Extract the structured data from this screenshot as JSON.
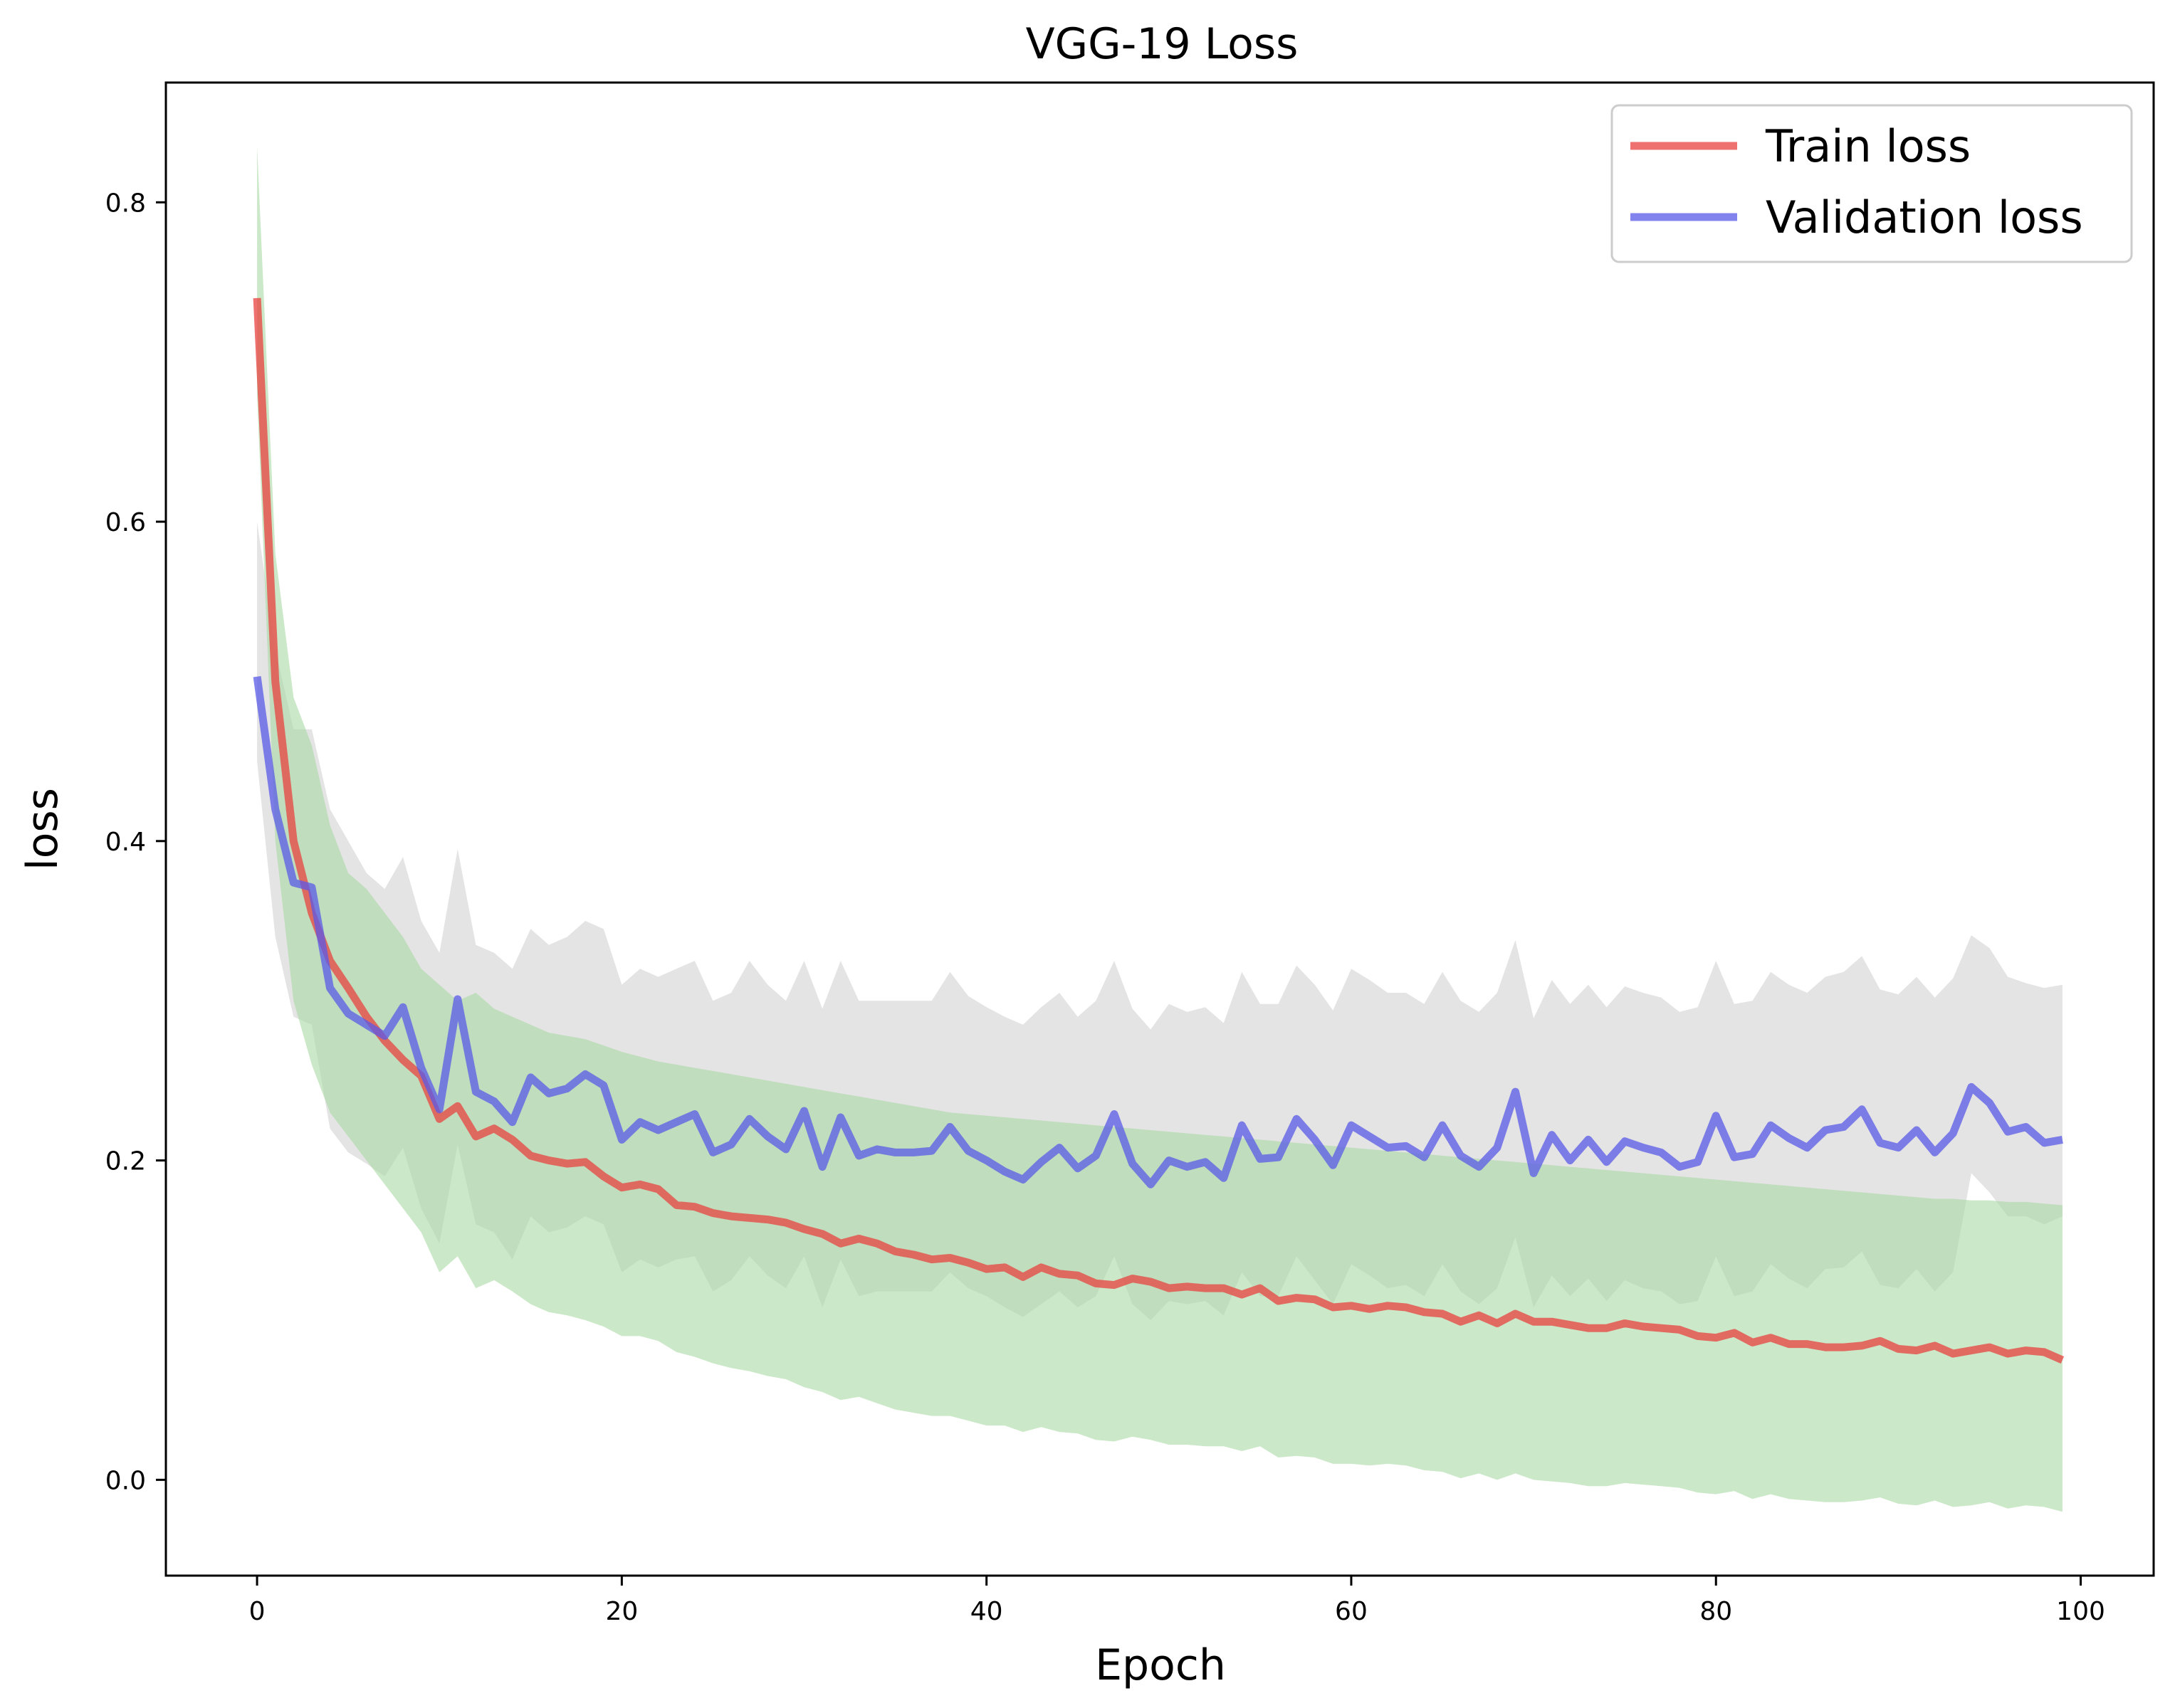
{
  "chart_data": {
    "type": "line",
    "title": "VGG-19 Loss",
    "xlabel": "Epoch",
    "ylabel": "loss",
    "xlim": [
      -5,
      104
    ],
    "ylim": [
      -0.06,
      0.875
    ],
    "xticks": [
      0,
      20,
      40,
      60,
      80,
      100
    ],
    "yticks": [
      0.0,
      0.2,
      0.4,
      0.6,
      0.8
    ],
    "xtick_labels": [
      "0",
      "20",
      "40",
      "60",
      "80",
      "100"
    ],
    "ytick_labels": [
      "0.0",
      "0.2",
      "0.4",
      "0.6",
      "0.8"
    ],
    "grid": false,
    "legend_position": "top-right",
    "series": [
      {
        "name": "Train loss",
        "color": "#e8423f",
        "band_color": "#a9d8a4",
        "x_start": 0,
        "values": [
          0.74,
          0.5,
          0.4,
          0.355,
          0.325,
          0.308,
          0.29,
          0.275,
          0.263,
          0.253,
          0.226,
          0.234,
          0.215,
          0.22,
          0.213,
          0.203,
          0.2,
          0.198,
          0.199,
          0.19,
          0.183,
          0.185,
          0.182,
          0.172,
          0.171,
          0.167,
          0.165,
          0.164,
          0.163,
          0.161,
          0.157,
          0.154,
          0.148,
          0.151,
          0.148,
          0.143,
          0.141,
          0.138,
          0.139,
          0.136,
          0.132,
          0.133,
          0.127,
          0.133,
          0.129,
          0.128,
          0.123,
          0.122,
          0.126,
          0.124,
          0.12,
          0.121,
          0.12,
          0.12,
          0.116,
          0.12,
          0.112,
          0.114,
          0.113,
          0.108,
          0.109,
          0.107,
          0.109,
          0.108,
          0.105,
          0.104,
          0.099,
          0.103,
          0.098,
          0.104,
          0.099,
          0.099,
          0.097,
          0.095,
          0.095,
          0.098,
          0.096,
          0.095,
          0.094,
          0.09,
          0.089,
          0.092,
          0.086,
          0.089,
          0.085,
          0.085,
          0.083,
          0.083,
          0.084,
          0.087,
          0.082,
          0.081,
          0.084,
          0.079,
          0.081,
          0.083,
          0.079,
          0.081,
          0.08,
          0.075
        ],
        "band_upper": [
          0.835,
          0.58,
          0.49,
          0.46,
          0.41,
          0.38,
          0.37,
          0.355,
          0.34,
          0.32,
          0.31,
          0.3,
          0.305,
          0.295,
          0.29,
          0.285,
          0.28,
          0.278,
          0.276,
          0.272,
          0.268,
          0.265,
          0.262,
          0.26,
          0.258,
          0.256,
          0.254,
          0.252,
          0.25,
          0.248,
          0.246,
          0.244,
          0.242,
          0.24,
          0.238,
          0.236,
          0.234,
          0.232,
          0.23,
          0.229,
          0.228,
          0.227,
          0.226,
          0.225,
          0.224,
          0.223,
          0.222,
          0.221,
          0.22,
          0.219,
          0.218,
          0.217,
          0.216,
          0.215,
          0.214,
          0.213,
          0.212,
          0.211,
          0.21,
          0.209,
          0.208,
          0.207,
          0.206,
          0.205,
          0.204,
          0.203,
          0.202,
          0.201,
          0.2,
          0.199,
          0.198,
          0.197,
          0.196,
          0.195,
          0.194,
          0.193,
          0.192,
          0.191,
          0.19,
          0.189,
          0.188,
          0.187,
          0.186,
          0.185,
          0.184,
          0.183,
          0.182,
          0.181,
          0.18,
          0.179,
          0.178,
          0.177,
          0.176,
          0.176,
          0.175,
          0.175,
          0.174,
          0.174,
          0.173,
          0.172
        ],
        "band_lower": [
          0.68,
          0.4,
          0.3,
          0.26,
          0.23,
          0.215,
          0.2,
          0.185,
          0.17,
          0.155,
          0.13,
          0.14,
          0.12,
          0.125,
          0.118,
          0.11,
          0.105,
          0.103,
          0.1,
          0.096,
          0.09,
          0.09,
          0.087,
          0.08,
          0.077,
          0.073,
          0.07,
          0.068,
          0.065,
          0.063,
          0.058,
          0.055,
          0.05,
          0.052,
          0.048,
          0.044,
          0.042,
          0.04,
          0.04,
          0.037,
          0.034,
          0.034,
          0.03,
          0.033,
          0.03,
          0.029,
          0.025,
          0.024,
          0.027,
          0.025,
          0.022,
          0.022,
          0.021,
          0.021,
          0.018,
          0.021,
          0.014,
          0.015,
          0.014,
          0.01,
          0.01,
          0.009,
          0.01,
          0.009,
          0.006,
          0.005,
          0.001,
          0.004,
          0.0,
          0.004,
          0.0,
          -0.001,
          -0.002,
          -0.004,
          -0.004,
          -0.002,
          -0.003,
          -0.004,
          -0.005,
          -0.008,
          -0.009,
          -0.007,
          -0.012,
          -0.009,
          -0.012,
          -0.013,
          -0.014,
          -0.014,
          -0.013,
          -0.011,
          -0.015,
          -0.016,
          -0.013,
          -0.017,
          -0.016,
          -0.014,
          -0.018,
          -0.016,
          -0.017,
          -0.02
        ]
      },
      {
        "name": "Validation loss",
        "color": "#5a5ae8",
        "band_color": "#d9d9d9",
        "x_start": 0,
        "values": [
          0.503,
          0.42,
          0.374,
          0.371,
          0.308,
          0.292,
          0.285,
          0.278,
          0.296,
          0.258,
          0.232,
          0.301,
          0.243,
          0.237,
          0.224,
          0.252,
          0.242,
          0.245,
          0.254,
          0.247,
          0.213,
          0.224,
          0.219,
          0.224,
          0.229,
          0.205,
          0.21,
          0.226,
          0.215,
          0.207,
          0.231,
          0.196,
          0.227,
          0.203,
          0.207,
          0.205,
          0.205,
          0.206,
          0.221,
          0.206,
          0.2,
          0.193,
          0.188,
          0.199,
          0.208,
          0.195,
          0.203,
          0.229,
          0.198,
          0.185,
          0.2,
          0.196,
          0.199,
          0.189,
          0.222,
          0.201,
          0.202,
          0.226,
          0.213,
          0.197,
          0.222,
          0.215,
          0.208,
          0.209,
          0.202,
          0.222,
          0.203,
          0.196,
          0.208,
          0.243,
          0.192,
          0.216,
          0.2,
          0.213,
          0.199,
          0.212,
          0.208,
          0.205,
          0.196,
          0.199,
          0.228,
          0.202,
          0.204,
          0.222,
          0.214,
          0.208,
          0.219,
          0.221,
          0.232,
          0.211,
          0.208,
          0.219,
          0.205,
          0.217,
          0.246,
          0.236,
          0.218,
          0.221,
          0.211,
          0.213
        ],
        "band_upper": [
          0.6,
          0.52,
          0.47,
          0.47,
          0.42,
          0.4,
          0.38,
          0.37,
          0.39,
          0.35,
          0.33,
          0.395,
          0.335,
          0.33,
          0.32,
          0.345,
          0.335,
          0.34,
          0.35,
          0.345,
          0.31,
          0.32,
          0.315,
          0.32,
          0.325,
          0.3,
          0.305,
          0.325,
          0.31,
          0.3,
          0.325,
          0.295,
          0.325,
          0.3,
          0.3,
          0.3,
          0.3,
          0.3,
          0.318,
          0.303,
          0.296,
          0.29,
          0.285,
          0.296,
          0.305,
          0.29,
          0.3,
          0.325,
          0.295,
          0.282,
          0.298,
          0.293,
          0.296,
          0.286,
          0.318,
          0.298,
          0.298,
          0.322,
          0.31,
          0.294,
          0.32,
          0.313,
          0.305,
          0.305,
          0.298,
          0.318,
          0.3,
          0.293,
          0.305,
          0.338,
          0.289,
          0.313,
          0.298,
          0.31,
          0.296,
          0.309,
          0.305,
          0.302,
          0.293,
          0.296,
          0.325,
          0.298,
          0.3,
          0.318,
          0.31,
          0.305,
          0.315,
          0.318,
          0.328,
          0.307,
          0.304,
          0.315,
          0.302,
          0.314,
          0.341,
          0.333,
          0.315,
          0.311,
          0.308,
          0.31
        ],
        "band_lower": [
          0.45,
          0.34,
          0.29,
          0.285,
          0.22,
          0.205,
          0.198,
          0.19,
          0.208,
          0.17,
          0.148,
          0.21,
          0.16,
          0.155,
          0.138,
          0.165,
          0.155,
          0.158,
          0.165,
          0.16,
          0.13,
          0.138,
          0.133,
          0.138,
          0.14,
          0.118,
          0.125,
          0.14,
          0.128,
          0.12,
          0.14,
          0.108,
          0.138,
          0.115,
          0.118,
          0.118,
          0.118,
          0.118,
          0.13,
          0.12,
          0.115,
          0.108,
          0.102,
          0.11,
          0.118,
          0.108,
          0.115,
          0.14,
          0.11,
          0.1,
          0.112,
          0.11,
          0.112,
          0.103,
          0.13,
          0.115,
          0.115,
          0.14,
          0.125,
          0.11,
          0.135,
          0.128,
          0.12,
          0.122,
          0.115,
          0.135,
          0.118,
          0.11,
          0.12,
          0.152,
          0.108,
          0.128,
          0.115,
          0.126,
          0.112,
          0.125,
          0.12,
          0.118,
          0.11,
          0.112,
          0.14,
          0.115,
          0.118,
          0.135,
          0.126,
          0.12,
          0.132,
          0.133,
          0.143,
          0.122,
          0.12,
          0.132,
          0.118,
          0.13,
          0.192,
          0.18,
          0.165,
          0.165,
          0.16,
          0.165
        ]
      }
    ]
  }
}
